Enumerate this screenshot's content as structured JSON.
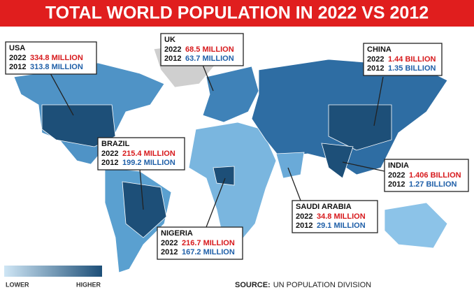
{
  "header": {
    "title": "TOTAL WORLD POPULATION IN 2022 VS 2012"
  },
  "callouts": [
    {
      "country": "USA",
      "rows": [
        {
          "year": "2022",
          "value": "334.8 MILLION"
        },
        {
          "year": "2012",
          "value": "313.8 MILLION"
        }
      ]
    },
    {
      "country": "UK",
      "rows": [
        {
          "year": "2022",
          "value": "68.5 MILLION"
        },
        {
          "year": "2012",
          "value": "63.7 MILLION"
        }
      ]
    },
    {
      "country": "CHINA",
      "rows": [
        {
          "year": "2022",
          "value": "1.44 BILLION"
        },
        {
          "year": "2012",
          "value": "1.35 BILLION"
        }
      ]
    },
    {
      "country": "BRAZIL",
      "rows": [
        {
          "year": "2022",
          "value": "215.4 MILLION"
        },
        {
          "year": "2012",
          "value": "199.2 MILLION"
        }
      ]
    },
    {
      "country": "INDIA",
      "rows": [
        {
          "year": "2022",
          "value": "1.406 BILLION"
        },
        {
          "year": "2012",
          "value": "1.27 BILLION"
        }
      ]
    },
    {
      "country": "SAUDI ARABIA",
      "rows": [
        {
          "year": "2022",
          "value": "34.8 MILLION"
        },
        {
          "year": "2012",
          "value": "29.1 MILLION"
        }
      ]
    },
    {
      "country": "NIGERIA",
      "rows": [
        {
          "year": "2022",
          "value": "216.7 MILLION"
        },
        {
          "year": "2012",
          "value": "167.2 MILLION"
        }
      ]
    }
  ],
  "legend": {
    "low": "LOWER",
    "high": "HIGHER"
  },
  "source": {
    "label": "SOURCE:",
    "text": "UN POPULATION DIVISION"
  }
}
